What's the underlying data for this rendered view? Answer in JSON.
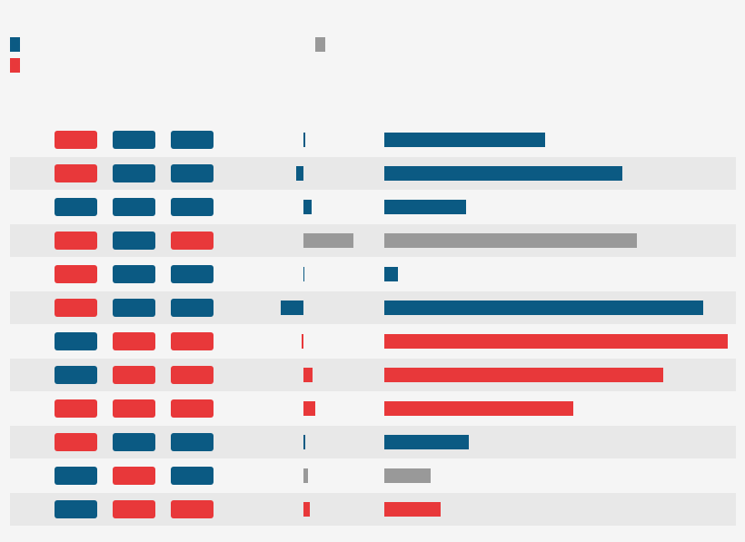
{
  "chart_data": {
    "type": "bar",
    "palette": {
      "blue": "#0b5a83",
      "red": "#e8383a",
      "grey": "#999999"
    },
    "legend": [
      {
        "color": "blue"
      },
      {
        "color": "red"
      },
      {
        "color": "grey"
      }
    ],
    "shift_lim": [
      -100,
      100
    ],
    "xlim": [
      0,
      400
    ],
    "rows": [
      {
        "pills": [
          "red",
          "blue",
          "blue"
        ],
        "shift": 2,
        "value": 177,
        "color": "blue"
      },
      {
        "pills": [
          "red",
          "blue",
          "blue"
        ],
        "shift": -8,
        "value": 262,
        "color": "blue"
      },
      {
        "pills": [
          "blue",
          "blue",
          "blue"
        ],
        "shift": 9,
        "value": 90,
        "color": "blue"
      },
      {
        "pills": [
          "red",
          "blue",
          "red"
        ],
        "shift": 55,
        "value": 278,
        "color": "grey"
      },
      {
        "pills": [
          "red",
          "blue",
          "blue"
        ],
        "shift": 1,
        "value": 15,
        "color": "blue"
      },
      {
        "pills": [
          "red",
          "blue",
          "blue"
        ],
        "shift": -25,
        "value": 351,
        "color": "blue"
      },
      {
        "pills": [
          "blue",
          "red",
          "red"
        ],
        "shift": -2,
        "value": 378,
        "color": "red"
      },
      {
        "pills": [
          "blue",
          "red",
          "red"
        ],
        "shift": 10,
        "value": 307,
        "color": "red"
      },
      {
        "pills": [
          "red",
          "red",
          "red"
        ],
        "shift": 13,
        "value": 208,
        "color": "red"
      },
      {
        "pills": [
          "red",
          "blue",
          "blue"
        ],
        "shift": 2,
        "value": 93,
        "color": "blue"
      },
      {
        "pills": [
          "blue",
          "red",
          "blue"
        ],
        "shift": 5,
        "value": 51,
        "color": "grey"
      },
      {
        "pills": [
          "blue",
          "red",
          "red"
        ],
        "shift": 7,
        "value": 62,
        "color": "red"
      }
    ]
  }
}
